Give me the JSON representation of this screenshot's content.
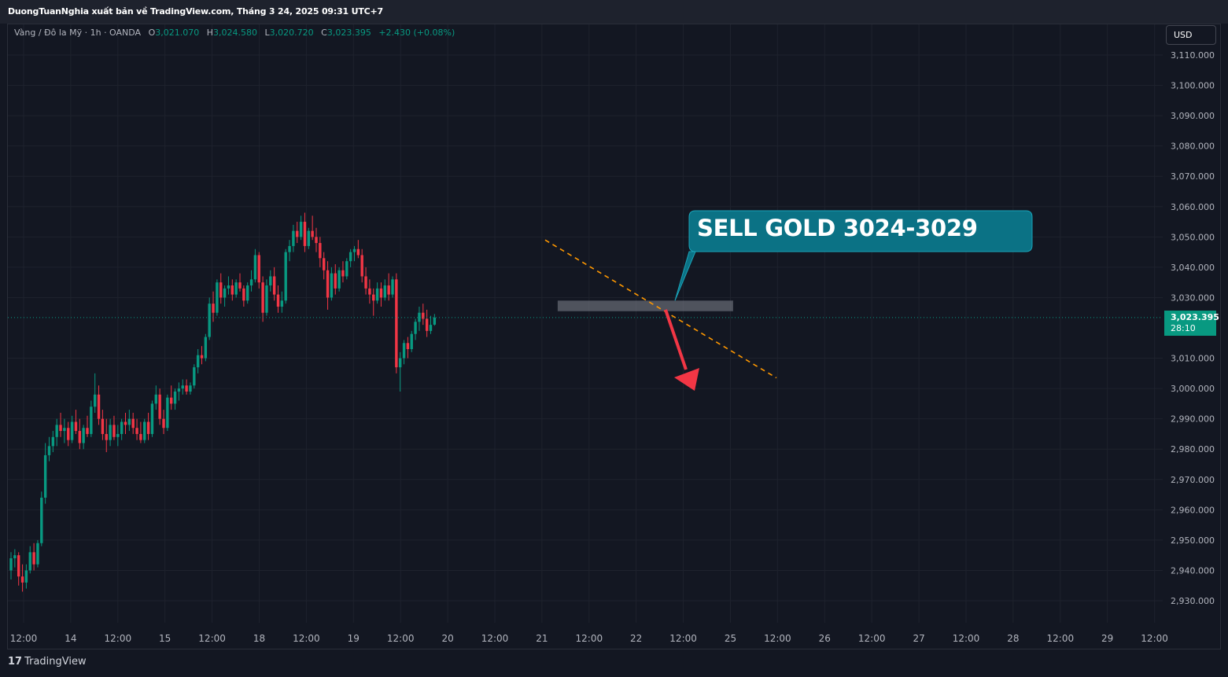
{
  "header": {
    "publish_line": "DuongTuanNghia xuất bản về TradingView.com, Tháng 3 24, 2025 09:31 UTC+7"
  },
  "legend": {
    "symbol": "Vàng / Đô la Mỹ · 1h · OANDA",
    "open_label": "O",
    "open": "3,021.070",
    "high_label": "H",
    "high": "3,024.580",
    "low_label": "L",
    "low": "3,020.720",
    "close_label": "C",
    "close": "3,023.395",
    "change": "+2.430 (+0.08%)"
  },
  "currency_button": "USD",
  "last_price": {
    "price": "3,023.395",
    "countdown": "28:10"
  },
  "annotation": {
    "callout_text": "SELL GOLD 3024-3029"
  },
  "footer": {
    "brand": "TradingView",
    "logo_glyph": "17"
  },
  "colors": {
    "background": "#131722",
    "grid": "#1e222d",
    "bull": "#089981",
    "bear": "#f23645",
    "trendline": "#ff9800",
    "callout": "#0b7285",
    "zone": "#787b86"
  },
  "chart_data": {
    "type": "candlestick",
    "y_axis": {
      "min": 2925,
      "max": 3114,
      "ticks": [
        3110,
        3100,
        3090,
        3080,
        3070,
        3060,
        3050,
        3040,
        3030,
        3010,
        3000,
        2990,
        2980,
        2970,
        2960,
        2950,
        2940,
        2930
      ],
      "tick_labels": [
        "3,110.000",
        "3,100.000",
        "3,090.000",
        "3,080.000",
        "3,070.000",
        "3,060.000",
        "3,050.000",
        "3,040.000",
        "3,030.000",
        "3,010.000",
        "3,000.000",
        "2,990.000",
        "2,980.000",
        "2,970.000",
        "2,960.000",
        "2,950.000",
        "2,940.000",
        "2,930.000"
      ]
    },
    "x_axis": {
      "ticks": [
        "12:00",
        "14",
        "12:00",
        "15",
        "12:00",
        "18",
        "12:00",
        "19",
        "12:00",
        "20",
        "12:00",
        "21",
        "12:00",
        "22",
        "12:00",
        "25",
        "12:00",
        "26",
        "12:00",
        "27",
        "12:00",
        "28",
        "12:00",
        "29",
        "12:00"
      ],
      "bar_start": 1,
      "ticks_every_bars": 12
    },
    "last_price": 3023.395,
    "candles": [
      [
        2940.0,
        2946.0,
        2937.0,
        2944.0
      ],
      [
        2944.0,
        2947.0,
        2941.0,
        2945.0
      ],
      [
        2945.0,
        2946.0,
        2935.0,
        2938.0
      ],
      [
        2938.0,
        2942.0,
        2933.0,
        2936.0
      ],
      [
        2936.0,
        2942.0,
        2934.0,
        2940.0
      ],
      [
        2940.0,
        2948.0,
        2939.0,
        2946.0
      ],
      [
        2946.0,
        2949.0,
        2940.0,
        2942.0
      ],
      [
        2942.0,
        2950.0,
        2941.0,
        2949.0
      ],
      [
        2949.0,
        2966.0,
        2948.0,
        2964.0
      ],
      [
        2964.0,
        2982.0,
        2962.0,
        2978.0
      ],
      [
        2978.0,
        2984.0,
        2976.0,
        2981.0
      ],
      [
        2981.0,
        2986.0,
        2979.0,
        2984.0
      ],
      [
        2984.0,
        2990.0,
        2981.0,
        2988.0
      ],
      [
        2988.0,
        2992.0,
        2984.0,
        2986.0
      ],
      [
        2986.0,
        2990.0,
        2982.0,
        2987.0
      ],
      [
        2987.0,
        2989.0,
        2981.0,
        2983.0
      ],
      [
        2983.0,
        2991.0,
        2982.0,
        2989.0
      ],
      [
        2989.0,
        2993.0,
        2985.0,
        2986.0
      ],
      [
        2986.0,
        2990.0,
        2980.0,
        2982.0
      ],
      [
        2982.0,
        2988.0,
        2980.0,
        2987.0
      ],
      [
        2987.0,
        2991.0,
        2984.0,
        2985.0
      ],
      [
        2985.0,
        2996.0,
        2984.0,
        2994.0
      ],
      [
        2994.0,
        3005.0,
        2992.0,
        2998.0
      ],
      [
        2998.0,
        3001.0,
        2988.0,
        2990.0
      ],
      [
        2990.0,
        2993.0,
        2983.0,
        2985.0
      ],
      [
        2985.0,
        2990.0,
        2979.0,
        2983.0
      ],
      [
        2983.0,
        2990.0,
        2981.0,
        2988.0
      ],
      [
        2988.0,
        2991.0,
        2983.0,
        2984.0
      ],
      [
        2984.0,
        2988.0,
        2981.0,
        2985.0
      ],
      [
        2985.0,
        2990.0,
        2983.0,
        2989.0
      ],
      [
        2989.0,
        2992.0,
        2985.0,
        2988.0
      ],
      [
        2988.0,
        2993.0,
        2986.0,
        2990.0
      ],
      [
        2990.0,
        2992.0,
        2985.0,
        2987.0
      ],
      [
        2987.0,
        2990.0,
        2983.0,
        2985.0
      ],
      [
        2985.0,
        2989.0,
        2982.0,
        2983.0
      ],
      [
        2983.0,
        2990.0,
        2982.0,
        2989.0
      ],
      [
        2989.0,
        2992.0,
        2983.0,
        2985.0
      ],
      [
        2985.0,
        2996.0,
        2984.0,
        2995.0
      ],
      [
        2995.0,
        3001.0,
        2993.0,
        2998.0
      ],
      [
        2998.0,
        3000.0,
        2988.0,
        2990.0
      ],
      [
        2990.0,
        2993.0,
        2985.0,
        2987.0
      ],
      [
        2987.0,
        2998.0,
        2986.0,
        2997.0
      ],
      [
        2997.0,
        3001.0,
        2993.0,
        2995.0
      ],
      [
        2995.0,
        3000.0,
        2993.0,
        2999.0
      ],
      [
        2999.0,
        3002.0,
        2996.0,
        3000.0
      ],
      [
        3000.0,
        3003.0,
        2998.0,
        3001.0
      ],
      [
        3001.0,
        3003.0,
        2998.0,
        2999.0
      ],
      [
        2999.0,
        3002.0,
        2998.0,
        3001.0
      ],
      [
        3001.0,
        3008.0,
        3000.0,
        3007.0
      ],
      [
        3007.0,
        3013.0,
        3005.0,
        3011.0
      ],
      [
        3011.0,
        3014.0,
        3008.0,
        3010.0
      ],
      [
        3010.0,
        3018.0,
        3009.0,
        3017.0
      ],
      [
        3017.0,
        3030.0,
        3016.0,
        3028.0
      ],
      [
        3028.0,
        3032.0,
        3022.0,
        3025.0
      ],
      [
        3025.0,
        3036.0,
        3024.0,
        3035.0
      ],
      [
        3035.0,
        3038.0,
        3028.0,
        3030.0
      ],
      [
        3030.0,
        3034.0,
        3027.0,
        3033.0
      ],
      [
        3033.0,
        3037.0,
        3031.0,
        3034.0
      ],
      [
        3034.0,
        3036.0,
        3029.0,
        3031.0
      ],
      [
        3031.0,
        3036.0,
        3030.0,
        3035.0
      ],
      [
        3035.0,
        3038.0,
        3032.0,
        3033.0
      ],
      [
        3033.0,
        3034.0,
        3027.0,
        3029.0
      ],
      [
        3029.0,
        3035.0,
        3028.0,
        3034.0
      ],
      [
        3034.0,
        3039.0,
        3032.0,
        3036.0
      ],
      [
        3036.0,
        3046.0,
        3035.0,
        3044.0
      ],
      [
        3044.0,
        3045.0,
        3033.0,
        3035.0
      ],
      [
        3035.0,
        3037.0,
        3022.0,
        3025.0
      ],
      [
        3025.0,
        3036.0,
        3024.0,
        3034.0
      ],
      [
        3034.0,
        3039.0,
        3032.0,
        3037.0
      ],
      [
        3037.0,
        3040.0,
        3029.0,
        3031.0
      ],
      [
        3031.0,
        3034.0,
        3025.0,
        3027.0
      ],
      [
        3027.0,
        3032.0,
        3025.0,
        3029.0
      ],
      [
        3029.0,
        3046.0,
        3028.0,
        3045.0
      ],
      [
        3045.0,
        3049.0,
        3042.0,
        3047.0
      ],
      [
        3047.0,
        3054.0,
        3045.0,
        3052.0
      ],
      [
        3052.0,
        3055.0,
        3048.0,
        3050.0
      ],
      [
        3050.0,
        3057.0,
        3049.0,
        3055.0
      ],
      [
        3055.0,
        3058.0,
        3045.0,
        3047.0
      ],
      [
        3047.0,
        3053.0,
        3046.0,
        3052.0
      ],
      [
        3052.0,
        3057.0,
        3049.0,
        3050.0
      ],
      [
        3050.0,
        3053.0,
        3045.0,
        3048.0
      ],
      [
        3048.0,
        3050.0,
        3040.0,
        3043.0
      ],
      [
        3043.0,
        3045.0,
        3036.0,
        3039.0
      ],
      [
        3039.0,
        3042.0,
        3026.0,
        3030.0
      ],
      [
        3030.0,
        3040.0,
        3029.0,
        3038.0
      ],
      [
        3038.0,
        3041.0,
        3031.0,
        3033.0
      ],
      [
        3033.0,
        3040.0,
        3032.0,
        3039.0
      ],
      [
        3039.0,
        3042.0,
        3035.0,
        3037.0
      ],
      [
        3037.0,
        3043.0,
        3036.0,
        3042.0
      ],
      [
        3042.0,
        3046.0,
        3040.0,
        3045.0
      ],
      [
        3045.0,
        3047.0,
        3042.0,
        3046.0
      ],
      [
        3046.0,
        3049.0,
        3043.0,
        3044.0
      ],
      [
        3044.0,
        3046.0,
        3035.0,
        3037.0
      ],
      [
        3037.0,
        3040.0,
        3031.0,
        3033.0
      ],
      [
        3033.0,
        3036.0,
        3028.0,
        3031.0
      ],
      [
        3031.0,
        3033.0,
        3024.0,
        3029.0
      ],
      [
        3029.0,
        3035.0,
        3028.0,
        3033.0
      ],
      [
        3033.0,
        3035.0,
        3027.0,
        3030.0
      ],
      [
        3030.0,
        3036.0,
        3029.0,
        3034.0
      ],
      [
        3034.0,
        3038.0,
        3029.0,
        3031.0
      ],
      [
        3031.0,
        3037.0,
        3030.0,
        3036.0
      ],
      [
        3036.0,
        3038.0,
        3005.0,
        3007.0
      ],
      [
        3007.0,
        3012.0,
        2999.0,
        3010.0
      ],
      [
        3010.0,
        3016.0,
        3008.0,
        3015.0
      ],
      [
        3015.0,
        3017.0,
        3010.0,
        3013.0
      ],
      [
        3013.0,
        3019.0,
        3012.0,
        3018.0
      ],
      [
        3018.0,
        3023.0,
        3016.0,
        3022.0
      ],
      [
        3022.0,
        3027.0,
        3019.0,
        3025.0
      ],
      [
        3025.0,
        3028.0,
        3021.0,
        3023.0
      ],
      [
        3023.0,
        3026.0,
        3017.0,
        3019.0
      ],
      [
        3019.0,
        3024.0,
        3018.0,
        3021.0
      ],
      [
        3021.07,
        3024.58,
        3020.72,
        3023.395
      ]
    ],
    "annotations": {
      "trendline": {
        "from": {
          "bar": 113.5,
          "price": 3049.0
        },
        "to": {
          "bar": 162.5,
          "price": 3003.5
        }
      },
      "supply_zone": {
        "from_bar": 114,
        "to_bar": 151,
        "price_low": 3025.5,
        "price_high": 3029.0
      },
      "callout": {
        "anchor": {
          "bar": 140,
          "price": 3029.0
        }
      },
      "arrow": {
        "from": {
          "bar": 140,
          "price": 3026.0
        },
        "to": {
          "bar": 146.5,
          "price": 2998.0
        }
      }
    }
  }
}
